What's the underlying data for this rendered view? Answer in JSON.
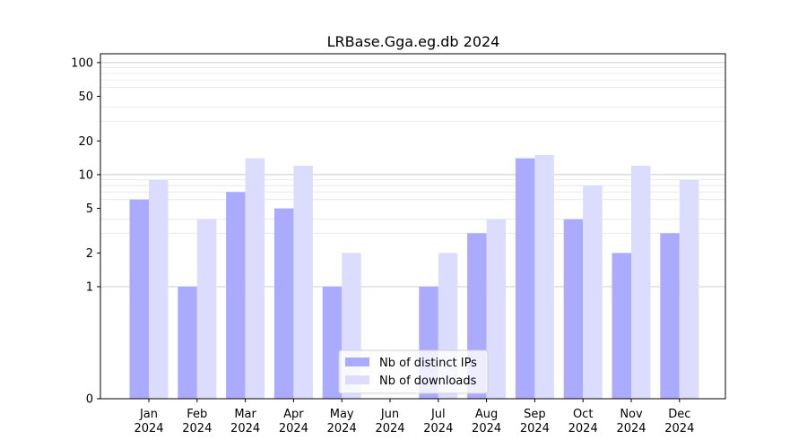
{
  "chart_data": {
    "type": "bar",
    "title": "LRBase.Gga.eg.db 2024",
    "xlabel": "",
    "ylabel": "",
    "yscale": "symlog",
    "ylim": [
      0,
      120
    ],
    "y_ticks": [
      "0",
      "1",
      "2",
      "5",
      "10",
      "20",
      "50",
      "100"
    ],
    "categories": [
      "Jan\n2024",
      "Feb\n2024",
      "Mar\n2024",
      "Apr\n2024",
      "May\n2024",
      "Jun\n2024",
      "Jul\n2024",
      "Aug\n2024",
      "Sep\n2024",
      "Oct\n2024",
      "Nov\n2024",
      "Dec\n2024"
    ],
    "series": [
      {
        "name": "Nb of distinct IPs",
        "color": "#aaaaff",
        "values": [
          6,
          1,
          7,
          5,
          1,
          0,
          1,
          3,
          14,
          4,
          2,
          3
        ]
      },
      {
        "name": "Nb of downloads",
        "color": "#dcdcff",
        "values": [
          9,
          4,
          14,
          12,
          2,
          0,
          2,
          4,
          15,
          8,
          12,
          9
        ]
      }
    ],
    "legend_position": "bottom-center",
    "grid": true
  }
}
